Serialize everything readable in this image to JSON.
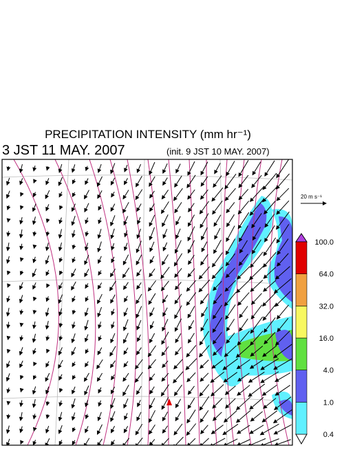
{
  "title": "PRECIPITATION INTENSITY (mm hr⁻¹)",
  "valid_time": "3 JST 11 MAY. 2007",
  "init_time": "(init. 9 JST 10 MAY. 2007)",
  "vector_reference": "20 m s⁻¹",
  "colorbar": {
    "labels": [
      "0.4",
      "1.0",
      "4.0",
      "16.0",
      "32.0",
      "64.0",
      "100.0"
    ],
    "colors": [
      "#60f0ff",
      "#6060f0",
      "#60e040",
      "#f8f860",
      "#f0a040",
      "#e00000"
    ],
    "over_color": "#b040e0",
    "under_color": "#ffffff"
  }
}
